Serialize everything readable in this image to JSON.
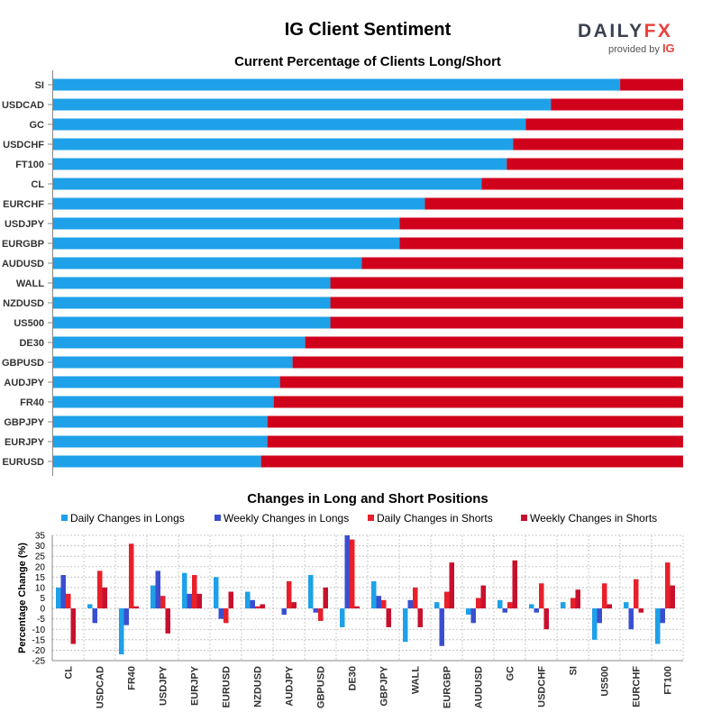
{
  "header": {
    "title": "IG Client Sentiment",
    "logo_text_a": "DAILY",
    "logo_text_b": "FX",
    "logo_sub": "provided by",
    "logo_sub_brand": "IG"
  },
  "colors": {
    "long": "#1ea1e8",
    "short": "#d0021b",
    "daily_long": "#1ea1e8",
    "weekly_long": "#3a4fd0",
    "daily_short": "#e8202a",
    "weekly_short": "#c8102e",
    "grid": "#bbbbbb"
  },
  "chart_data": [
    {
      "type": "bar",
      "orientation": "horizontal-stacked",
      "title": "Current Percentage of Clients Long/Short",
      "categories": [
        "SI",
        "USDCAD",
        "GC",
        "USDCHF",
        "FT100",
        "CL",
        "EURCHF",
        "USDJPY",
        "EURGBP",
        "AUDUSD",
        "WALL",
        "NZDUSD",
        "US500",
        "DE30",
        "GBPUSD",
        "AUDJPY",
        "FR40",
        "GBPJPY",
        "EURJPY",
        "EURUSD"
      ],
      "series": [
        {
          "name": "Long",
          "values": [
            90,
            79,
            75,
            73,
            72,
            68,
            59,
            55,
            55,
            49,
            44,
            44,
            44,
            40,
            38,
            36,
            35,
            34,
            34,
            33
          ]
        },
        {
          "name": "Short",
          "values": [
            10,
            21,
            25,
            27,
            28,
            32,
            41,
            45,
            45,
            51,
            56,
            56,
            56,
            60,
            62,
            64,
            65,
            66,
            66,
            67
          ]
        }
      ],
      "xlim": [
        0,
        100
      ]
    },
    {
      "type": "bar",
      "orientation": "vertical-grouped",
      "title": "Changes in Long and Short Positions",
      "ylabel": "Percentage Change (%)",
      "ylim": [
        -25,
        35
      ],
      "yticks": [
        -25,
        -20,
        -15,
        -10,
        -5,
        0,
        5,
        10,
        15,
        20,
        25,
        30,
        35
      ],
      "categories": [
        "CL",
        "USDCAD",
        "FR40",
        "USDJPY",
        "EURJPY",
        "EURUSD",
        "NZDUSD",
        "AUDJPY",
        "GBPUSD",
        "DE30",
        "GBPJPY",
        "WALL",
        "EURGBP",
        "AUDUSD",
        "GC",
        "USDCHF",
        "SI",
        "US500",
        "EURCHF",
        "FT100"
      ],
      "series": [
        {
          "name": "Daily Changes in Longs",
          "values": [
            10,
            2,
            -22,
            11,
            17,
            15,
            8,
            0,
            16,
            -9,
            13,
            -16,
            3,
            -3,
            4,
            2,
            3,
            -15,
            3,
            -17
          ]
        },
        {
          "name": "Weekly Changes in Longs",
          "values": [
            16,
            -7,
            -8,
            18,
            7,
            -5,
            4,
            -3,
            -2,
            35,
            6,
            4,
            -18,
            -7,
            -2,
            -2,
            0,
            -7,
            -10,
            -7
          ]
        },
        {
          "name": "Daily Changes in Shorts",
          "values": [
            7,
            18,
            31,
            6,
            16,
            -7,
            1,
            13,
            -6,
            33,
            4,
            10,
            8,
            5,
            3,
            12,
            5,
            12,
            14,
            22
          ]
        },
        {
          "name": "Weekly Changes in Shorts",
          "values": [
            -17,
            10,
            1,
            -12,
            7,
            8,
            2,
            3,
            10,
            1,
            -9,
            -9,
            22,
            11,
            23,
            -10,
            9,
            2,
            -2,
            11
          ]
        }
      ]
    }
  ]
}
